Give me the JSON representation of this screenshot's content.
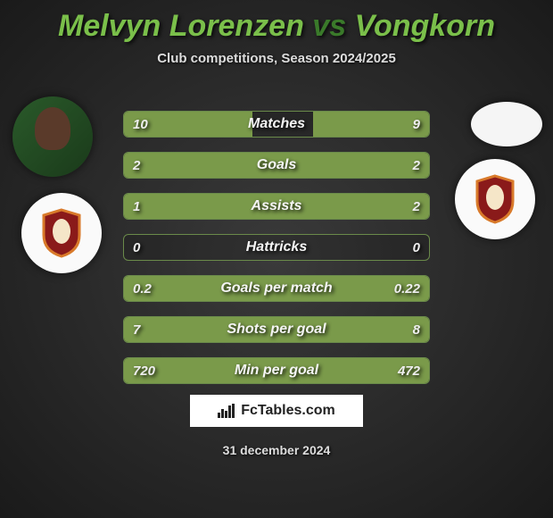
{
  "title": {
    "player1": "Melvyn Lorenzen",
    "vs": "vs",
    "player2": "Vongkorn"
  },
  "subtitle": "Club competitions, Season 2024/2025",
  "colors": {
    "accent": "#7abf4a",
    "accent_dark": "#3a7a2a",
    "bar_fill": "#7a9a4a",
    "bar_border": "#6a8a4a",
    "text": "#eeeeee",
    "shield_ring": "#d97a2a",
    "shield_inner": "#8a1a1a",
    "shield_center": "#f5e6c8"
  },
  "stats": [
    {
      "label": "Matches",
      "left_val": "10",
      "right_val": "9",
      "left_pct": 42,
      "right_pct": 38
    },
    {
      "label": "Goals",
      "left_val": "2",
      "right_val": "2",
      "left_pct": 50,
      "right_pct": 50
    },
    {
      "label": "Assists",
      "left_val": "1",
      "right_val": "2",
      "left_pct": 33,
      "right_pct": 67
    },
    {
      "label": "Hattricks",
      "left_val": "0",
      "right_val": "0",
      "left_pct": 0,
      "right_pct": 0
    },
    {
      "label": "Goals per match",
      "left_val": "0.2",
      "right_val": "0.22",
      "left_pct": 48,
      "right_pct": 52
    },
    {
      "label": "Shots per goal",
      "left_val": "7",
      "right_val": "8",
      "left_pct": 47,
      "right_pct": 53
    },
    {
      "label": "Min per goal",
      "left_val": "720",
      "right_val": "472",
      "left_pct": 60,
      "right_pct": 40
    }
  ],
  "branding": {
    "site": "FcTables.com"
  },
  "date": "31 december 2024",
  "icons": {
    "player1_avatar": "player-photo",
    "player1_club": "club-shield",
    "player2_avatar": "blank-oval",
    "player2_club": "club-shield"
  }
}
